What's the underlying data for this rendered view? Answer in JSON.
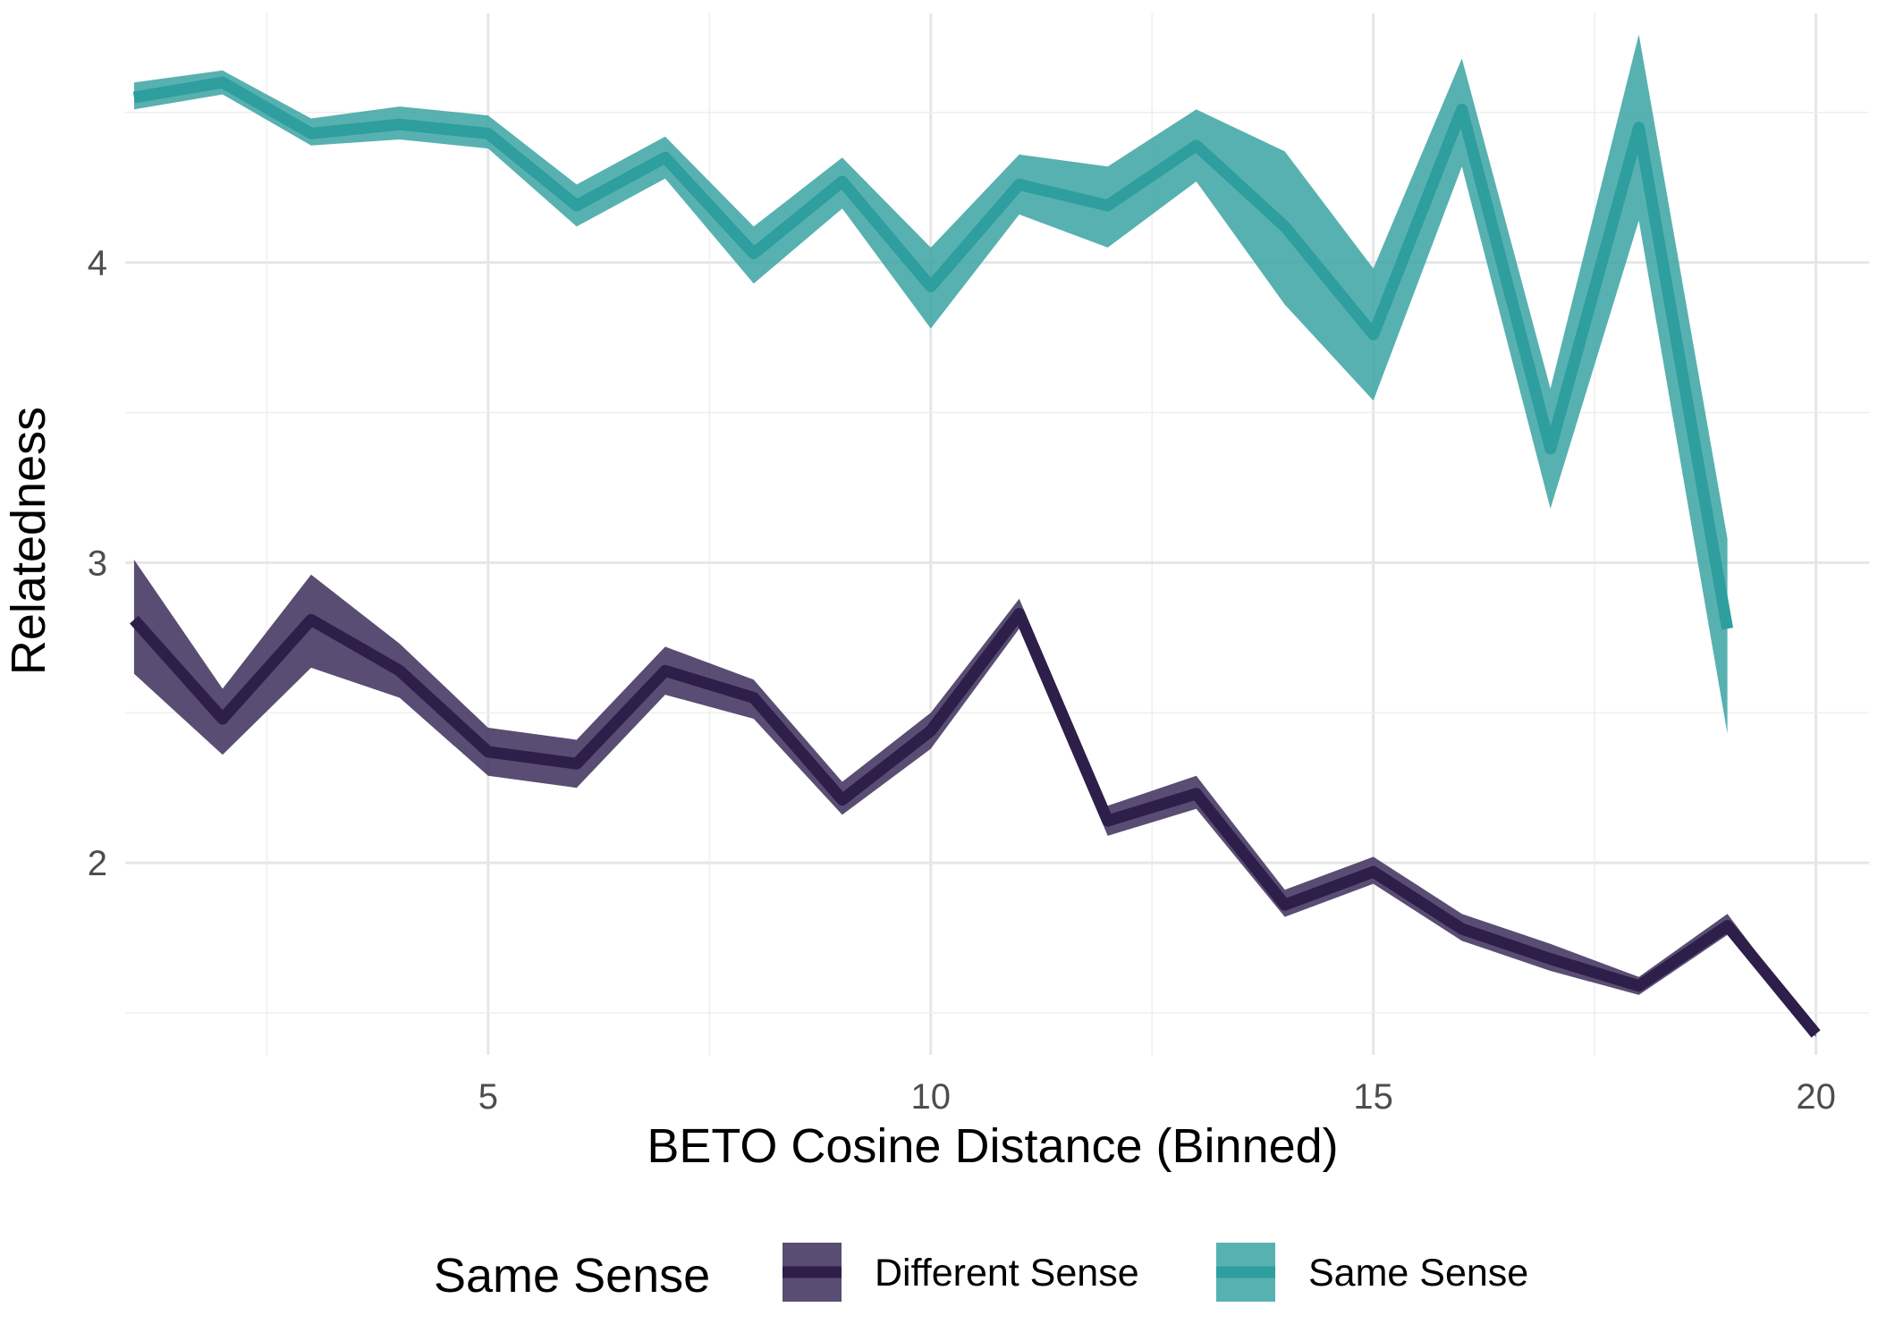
{
  "chart_data": {
    "type": "line",
    "xlabel": "BETO Cosine Distance (Binned)",
    "ylabel": "Relatedness",
    "xlim": [
      0.9,
      20.6
    ],
    "ylim": [
      1.36,
      4.83
    ],
    "x_ticks": [
      5,
      10,
      15,
      20
    ],
    "y_ticks": [
      2,
      3,
      4
    ],
    "grid": true,
    "legend": {
      "title": "Same Sense",
      "placement": "bottom"
    },
    "series": [
      {
        "name": "Different Sense",
        "color": "#2d1e4a",
        "band_color": "#3d2e5a",
        "x": [
          1,
          2,
          3,
          4,
          5,
          6,
          7,
          8,
          9,
          10,
          11,
          12,
          13,
          14,
          15,
          16,
          17,
          18,
          19,
          20
        ],
        "y": [
          2.81,
          2.48,
          2.81,
          2.64,
          2.37,
          2.33,
          2.64,
          2.55,
          2.21,
          2.44,
          2.83,
          2.14,
          2.23,
          1.86,
          1.97,
          1.78,
          1.68,
          1.59,
          1.79,
          1.43
        ],
        "lower": [
          2.63,
          2.36,
          2.65,
          2.55,
          2.29,
          2.25,
          2.56,
          2.48,
          2.16,
          2.38,
          2.78,
          2.09,
          2.18,
          1.82,
          1.93,
          1.74,
          1.64,
          1.56,
          1.76,
          1.42
        ],
        "upper": [
          3.01,
          2.58,
          2.96,
          2.73,
          2.45,
          2.41,
          2.72,
          2.61,
          2.27,
          2.5,
          2.88,
          2.19,
          2.29,
          1.91,
          2.02,
          1.83,
          1.73,
          1.62,
          1.83,
          1.44
        ]
      },
      {
        "name": "Same Sense",
        "color": "#2e9e9e",
        "band_color": "#3ba3a3",
        "x": [
          1,
          2,
          3,
          4,
          5,
          6,
          7,
          8,
          9,
          10,
          11,
          12,
          13,
          14,
          15,
          16,
          17,
          18,
          19
        ],
        "y": [
          4.55,
          4.6,
          4.43,
          4.46,
          4.43,
          4.19,
          4.35,
          4.03,
          4.27,
          3.92,
          4.26,
          4.19,
          4.39,
          4.12,
          3.76,
          4.51,
          3.38,
          4.45,
          2.78
        ],
        "lower": [
          4.51,
          4.56,
          4.39,
          4.41,
          4.38,
          4.12,
          4.28,
          3.93,
          4.18,
          3.78,
          4.16,
          4.05,
          4.27,
          3.86,
          3.54,
          4.32,
          3.18,
          4.14,
          2.43
        ],
        "upper": [
          4.6,
          4.64,
          4.48,
          4.52,
          4.49,
          4.26,
          4.42,
          4.12,
          4.35,
          4.05,
          4.36,
          4.32,
          4.51,
          4.37,
          3.98,
          4.68,
          3.58,
          4.76,
          3.08
        ]
      }
    ]
  }
}
